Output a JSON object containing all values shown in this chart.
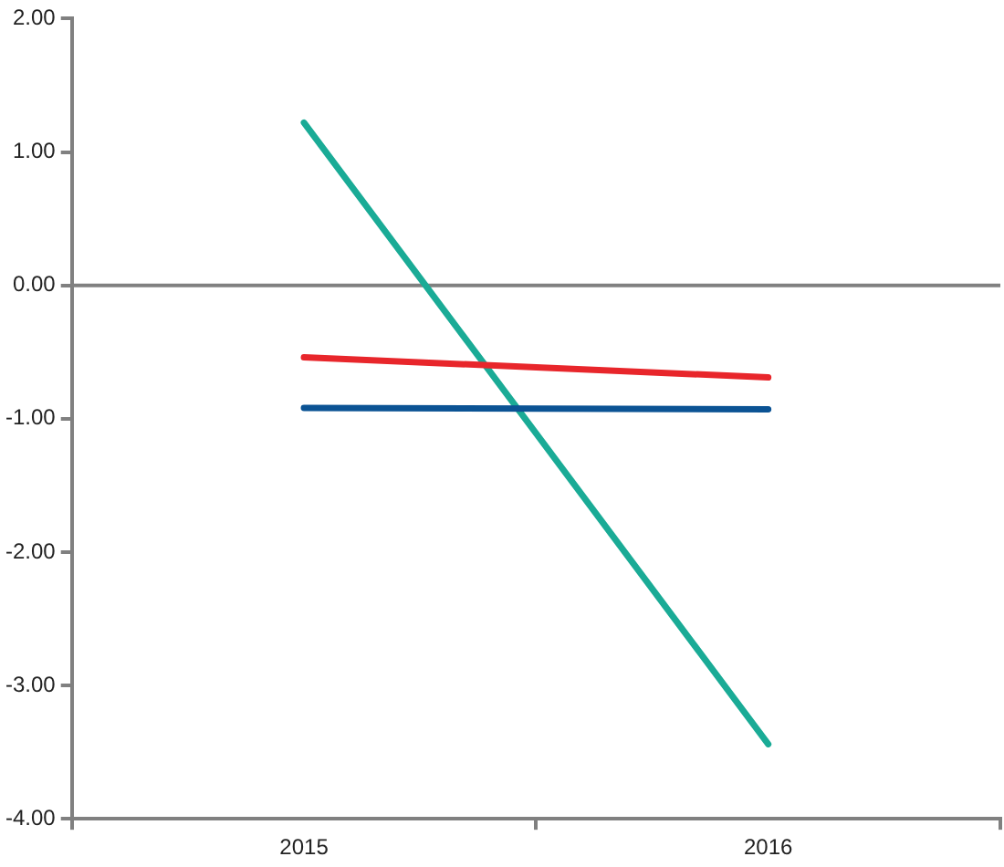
{
  "chart_data": {
    "type": "line",
    "categories": [
      "2015",
      "2016"
    ],
    "series": [
      {
        "color": "#e8262b",
        "values": [
          -0.54,
          -0.69
        ]
      },
      {
        "color": "#0b5394",
        "values": [
          -0.92,
          -0.93
        ]
      },
      {
        "color": "#1aab96",
        "values": [
          1.22,
          -3.44
        ]
      }
    ],
    "ylim": [
      -4,
      2
    ],
    "yticks": [
      {
        "value": -4,
        "label": "-4.00"
      },
      {
        "value": -3,
        "label": "-3.00"
      },
      {
        "value": -2,
        "label": "-2.00"
      },
      {
        "value": -1,
        "label": "-1.00"
      },
      {
        "value": 0,
        "label": "0.00"
      },
      {
        "value": 1,
        "label": "1.00"
      },
      {
        "value": 2,
        "label": "2.00"
      }
    ],
    "ref_lines": [
      {
        "axis": "y",
        "value": 0,
        "color": "#808080"
      }
    ],
    "grid": false,
    "legend": false,
    "marker": "none",
    "line_style": "solid"
  }
}
